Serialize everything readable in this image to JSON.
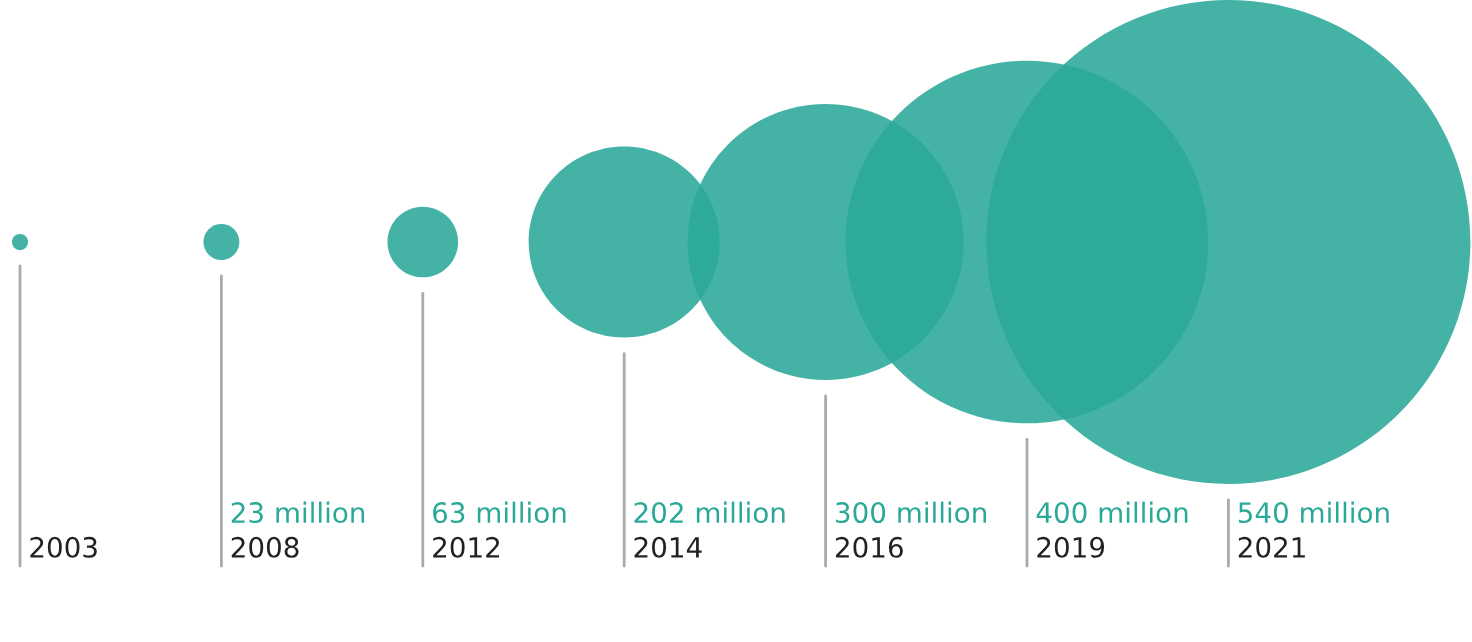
{
  "chart_data": {
    "type": "other",
    "categories": [
      "2003",
      "2008",
      "2012",
      "2014",
      "2016",
      "2019",
      "2021"
    ],
    "values": [
      null,
      23,
      63,
      202,
      300,
      400,
      540
    ],
    "value_labels": [
      null,
      "23 million",
      "63 million",
      "202 million",
      "300 million",
      "400 million",
      "540 million"
    ],
    "color": "#2aa898"
  }
}
